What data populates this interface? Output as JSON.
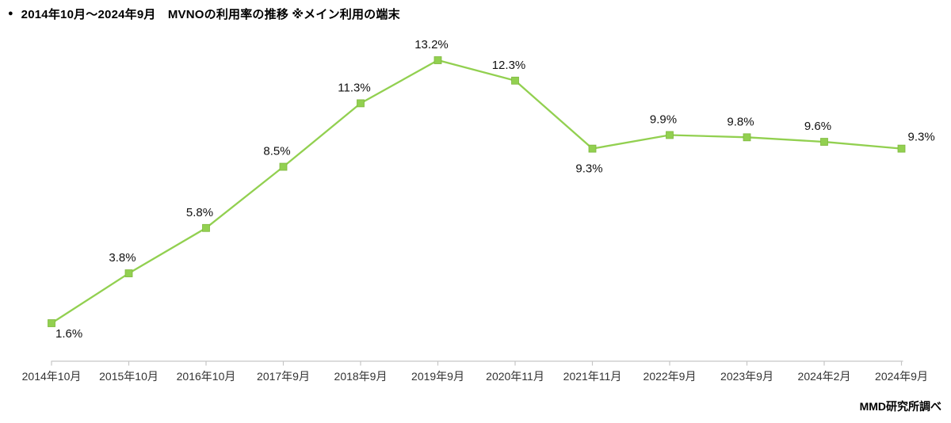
{
  "header": {
    "bullet": "●",
    "title": "2014年10月～2024年9月　MVNOの利用率の推移 ※メイン利用の端末"
  },
  "footer": {
    "source": "MMD研究所調べ"
  },
  "chart_data": {
    "type": "line",
    "title": "2014年10月～2024年9月　MVNOの利用率の推移 ※メイン利用の端末",
    "categories": [
      "2014年10月",
      "2015年10月",
      "2016年10月",
      "2017年9月",
      "2018年9月",
      "2019年9月",
      "2020年11月",
      "2021年11月",
      "2022年9月",
      "2023年9月",
      "2024年2月",
      "2024年9月"
    ],
    "values": [
      1.6,
      3.8,
      5.8,
      8.5,
      11.3,
      13.2,
      12.3,
      9.3,
      9.9,
      9.8,
      9.6,
      9.3
    ],
    "labels": [
      "1.6%",
      "3.8%",
      "5.8%",
      "8.5%",
      "11.3%",
      "13.2%",
      "12.3%",
      "9.3%",
      "9.9%",
      "9.8%",
      "9.6%",
      "9.3%"
    ],
    "label_positions": [
      "below-right",
      "above",
      "above",
      "above",
      "above",
      "above",
      "above",
      "below",
      "above",
      "above",
      "above",
      "above-right"
    ],
    "xlabel": "",
    "ylabel": "",
    "ylim": [
      0,
      16
    ],
    "grid": false,
    "legend": "none",
    "y_axis_visible": false,
    "x_axis_visible": true,
    "line_color": "#92D050",
    "marker_color": "#92D050",
    "marker_stroke": "#7FB83E",
    "axis_color": "#C6C6C6",
    "data_label_color": "#111111",
    "tick_label_color": "#333333"
  }
}
